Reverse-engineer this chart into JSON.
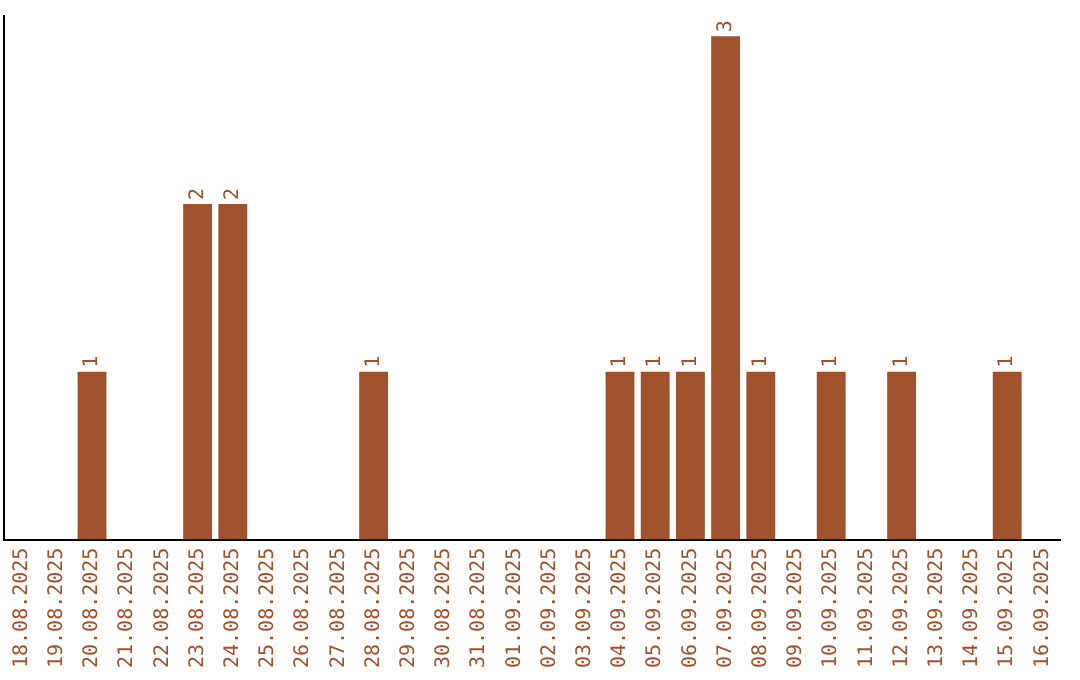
{
  "chart_data": {
    "type": "bar",
    "categories": [
      "18.08.2025",
      "19.08.2025",
      "20.08.2025",
      "21.08.2025",
      "22.08.2025",
      "23.08.2025",
      "24.08.2025",
      "25.08.2025",
      "26.08.2025",
      "27.08.2025",
      "28.08.2025",
      "29.08.2025",
      "30.08.2025",
      "31.08.2025",
      "01.09.2025",
      "02.09.2025",
      "03.09.2025",
      "04.09.2025",
      "05.09.2025",
      "06.09.2025",
      "07.09.2025",
      "08.09.2025",
      "09.09.2025",
      "10.09.2025",
      "11.09.2025",
      "12.09.2025",
      "13.09.2025",
      "14.09.2025",
      "15.09.2025",
      "16.09.2025"
    ],
    "values": [
      0,
      0,
      1,
      0,
      0,
      2,
      2,
      0,
      0,
      0,
      1,
      0,
      0,
      0,
      0,
      0,
      0,
      1,
      1,
      1,
      3,
      1,
      0,
      1,
      0,
      1,
      0,
      0,
      1,
      0
    ],
    "value_labels": [
      null,
      null,
      "1",
      null,
      null,
      "2",
      "2",
      null,
      null,
      null,
      "1",
      null,
      null,
      null,
      null,
      null,
      null,
      "1",
      "1",
      "1",
      "3",
      "1",
      null,
      "1",
      null,
      "1",
      null,
      null,
      "1",
      null
    ],
    "color": "#a0522d",
    "grid": false,
    "legend": false,
    "tick_labels": "x"
  }
}
